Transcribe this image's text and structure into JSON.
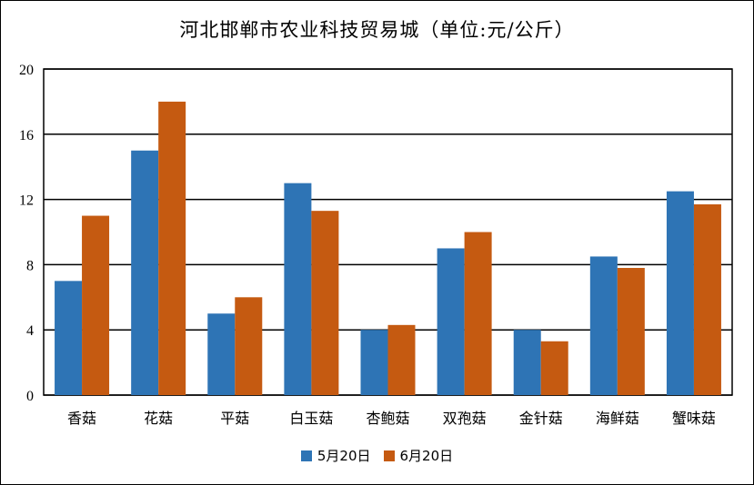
{
  "chart_data": {
    "type": "bar",
    "title": "河北邯郸市农业科技贸易城（单位:元/公斤）",
    "categories": [
      "香菇",
      "花菇",
      "平菇",
      "白玉菇",
      "杏鲍菇",
      "双孢菇",
      "金针菇",
      "海鲜菇",
      "蟹味菇"
    ],
    "series": [
      {
        "name": "5月20日",
        "color": "#2E74B5",
        "values": [
          7,
          15,
          5,
          13,
          4,
          9,
          4,
          8.5,
          12.5
        ]
      },
      {
        "name": "6月20日",
        "color": "#C55A11",
        "values": [
          11,
          18,
          6,
          11.3,
          4.3,
          10,
          3.3,
          7.8,
          11.7
        ]
      }
    ],
    "ylim": [
      0,
      20
    ],
    "yticks": [
      0,
      4,
      8,
      12,
      16,
      20
    ],
    "grid": true,
    "legend_position": "bottom"
  }
}
